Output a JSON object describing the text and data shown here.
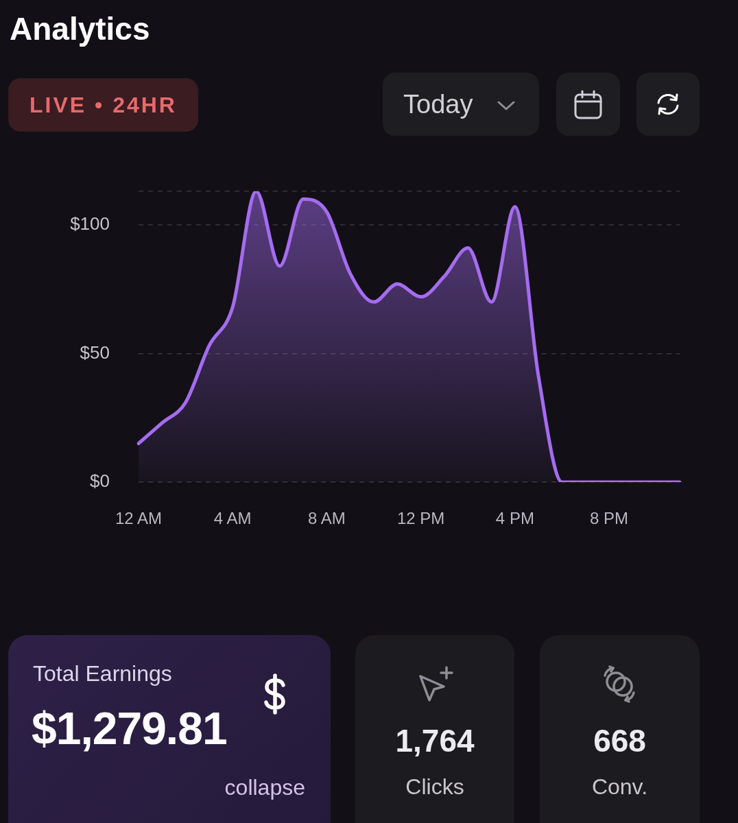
{
  "chart_data": [
    {
      "type": "area",
      "title": "Analytics",
      "subtitle": "LIVE • 24HR",
      "annotations": [
        "Today"
      ],
      "categories": [
        "12 AM",
        null,
        null,
        null,
        "4 AM",
        null,
        null,
        null,
        "8 AM",
        null,
        null,
        null,
        "12 PM",
        null,
        null,
        null,
        "4 PM",
        null,
        null,
        null,
        "8 PM",
        null,
        null,
        null
      ],
      "values": [
        15,
        23,
        31,
        53,
        68,
        113,
        84,
        110,
        105,
        81,
        70,
        77,
        72,
        80,
        91,
        70,
        107,
        41,
        0,
        0,
        0,
        0,
        0,
        0
      ],
      "color": "#a56cf0",
      "ylim": [
        0,
        113
      ],
      "yticks": [
        {
          "value": 0,
          "label": "$0"
        },
        {
          "value": 50,
          "label": "$50"
        },
        {
          "value": 100,
          "label": "$100"
        },
        {
          "value": 113,
          "label": null
        }
      ],
      "grid": "y"
    },
    {
      "type": "other",
      "title": "Total Earnings",
      "annotations": [
        "$1,279.81",
        "collapse"
      ]
    },
    {
      "type": "other",
      "annotations": [
        "1,764",
        "Clicks"
      ]
    },
    {
      "type": "other",
      "annotations": [
        "668",
        "Conv."
      ]
    }
  ]
}
